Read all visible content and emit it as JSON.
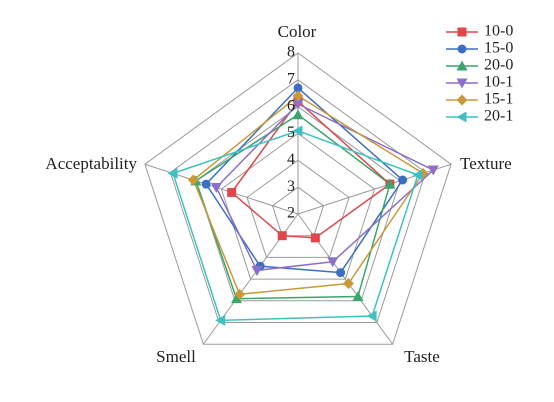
{
  "chart_data": {
    "type": "radar",
    "categories": [
      "Color",
      "Texture",
      "Taste",
      "Smell",
      "Acceptability"
    ],
    "rlim": [
      2,
      8
    ],
    "rticks": [
      2,
      3,
      4,
      5,
      6,
      7,
      8
    ],
    "legend": "top-right",
    "series": [
      {
        "name": "10-0",
        "color": "#e0474c",
        "marker": "square",
        "values": [
          6.2,
          5.6,
          3.1,
          3.0,
          4.6
        ]
      },
      {
        "name": "15-0",
        "color": "#3a6fc4",
        "marker": "circle",
        "values": [
          6.7,
          6.1,
          4.7,
          4.4,
          5.6
        ]
      },
      {
        "name": "20-0",
        "color": "#3aa66b",
        "marker": "triangle-up",
        "values": [
          5.7,
          5.6,
          5.8,
          5.9,
          6.0
        ]
      },
      {
        "name": "10-1",
        "color": "#8b6fc9",
        "marker": "triangle-down",
        "values": [
          6.1,
          7.3,
          4.2,
          4.6,
          5.2
        ]
      },
      {
        "name": "15-1",
        "color": "#c9993a",
        "marker": "diamond",
        "values": [
          6.4,
          6.9,
          5.2,
          5.7,
          6.1
        ]
      },
      {
        "name": "20-1",
        "color": "#3fc1c0",
        "marker": "triangle-left",
        "values": [
          5.1,
          6.7,
          6.7,
          6.9,
          6.9
        ]
      }
    ]
  }
}
